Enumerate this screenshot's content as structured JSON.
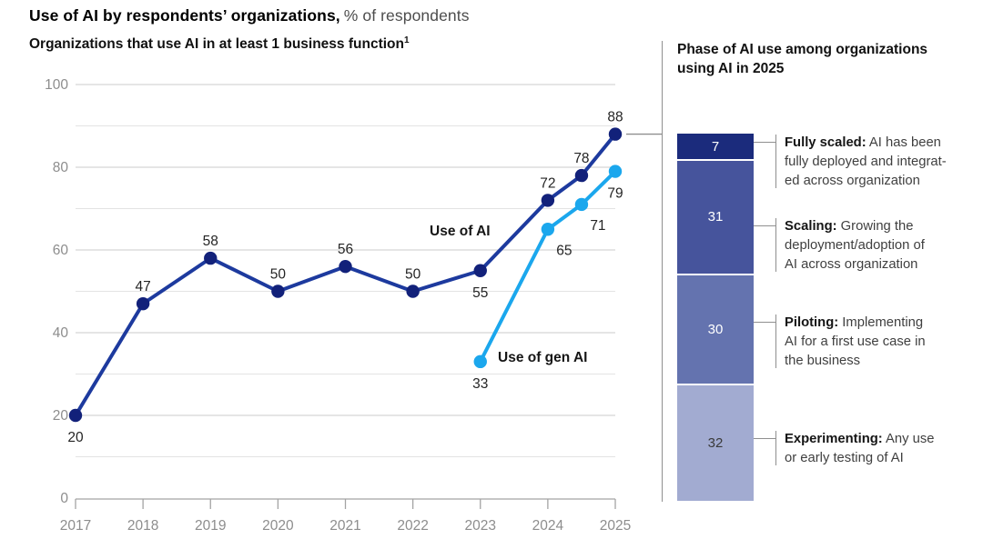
{
  "title": {
    "bold": "Use of AI by respondents’ organizations,",
    "light": "% of respondents"
  },
  "left_chart": {
    "subtitle": "Organizations that use AI in at least 1 business function",
    "footnote_marker": "1"
  },
  "right_panel": {
    "title": "Phase of AI use among organizations using AI in 2025",
    "axis_total": 100,
    "divider_color": "#8f8f8f",
    "phases": [
      {
        "value": 7,
        "color": "#1b2b7c",
        "text_color": "#ffffff",
        "bold": "Fully scaled:",
        "lines": [
          "AI has been",
          "fully deployed and integrat-",
          "ed across organization"
        ]
      },
      {
        "value": 31,
        "color": "#46549c",
        "text_color": "#ffffff",
        "bold": "Scaling:",
        "lines": [
          "Growing the",
          "deployment/adoption of",
          "AI across organization"
        ]
      },
      {
        "value": 30,
        "color": "#6473af",
        "text_color": "#ffffff",
        "bold": "Piloting:",
        "lines": [
          "Implementing",
          "AI for a first use case in",
          "the business"
        ]
      },
      {
        "value": 32,
        "color": "#a2abd1",
        "text_color": "#3a3a3a",
        "bold": "Experimenting:",
        "lines": [
          "Any use",
          "or early testing of AI"
        ]
      }
    ]
  },
  "chart_data": [
    {
      "type": "line",
      "title": "Organizations that use AI in at least 1 business function",
      "ylabel": "% of respondents",
      "x_ticks": [
        2017,
        2018,
        2019,
        2020,
        2021,
        2022,
        2023,
        2024,
        2025
      ],
      "ylim": [
        0,
        100
      ],
      "y_major_ticks": [
        0,
        20,
        40,
        60,
        80,
        100
      ],
      "y_minor_gridlines": [
        10,
        30,
        50,
        70,
        90
      ],
      "grid": true,
      "legend": "inline-labels",
      "colors": {
        "grid_major": "#d5d5d5",
        "grid_minor": "#e3e3e3",
        "axis": "#a3a3a3",
        "tick_label": "#8d8d8d",
        "data_label": "#242424"
      },
      "series": [
        {
          "name": "Use of AI",
          "color": "#1d3a9e",
          "marker_color": "#12217a",
          "points": [
            {
              "x": 2017,
              "y": 20,
              "label_pos": "below"
            },
            {
              "x": 2018,
              "y": 47,
              "label_pos": "above"
            },
            {
              "x": 2019,
              "y": 58,
              "label_pos": "above"
            },
            {
              "x": 2020,
              "y": 50,
              "label_pos": "above"
            },
            {
              "x": 2021,
              "y": 56,
              "label_pos": "above"
            },
            {
              "x": 2022,
              "y": 50,
              "label_pos": "above"
            },
            {
              "x": 2023,
              "y": 55,
              "label_pos": "below"
            },
            {
              "x": 2024,
              "y": 72,
              "label_pos": "above"
            },
            {
              "x": 2024.5,
              "y": 78,
              "label_pos": "above"
            },
            {
              "x": 2025,
              "y": 88,
              "label_pos": "above"
            }
          ]
        },
        {
          "name": "Use of gen AI",
          "color": "#1ba7ed",
          "marker_color": "#1ba7ed",
          "points": [
            {
              "x": 2023,
              "y": 33,
              "label_pos": "below"
            },
            {
              "x": 2024,
              "y": 65,
              "label_pos": "below-right"
            },
            {
              "x": 2024.5,
              "y": 71,
              "label_pos": "below-right"
            },
            {
              "x": 2025,
              "y": 79,
              "label_pos": "below"
            }
          ]
        }
      ]
    },
    {
      "type": "bar",
      "stacked": true,
      "title": "Phase of AI use among organizations using AI in 2025",
      "categories": [
        "Fully scaled",
        "Scaling",
        "Piloting",
        "Experimenting"
      ],
      "values": [
        7,
        31,
        30,
        32
      ],
      "descriptions": [
        "AI has been fully deployed and integrated across organization",
        "Growing the deployment/adoption of AI across organization",
        "Implementing AI for a first use case in the business",
        "Any use or early testing of AI"
      ],
      "ylim": [
        0,
        100
      ]
    }
  ]
}
